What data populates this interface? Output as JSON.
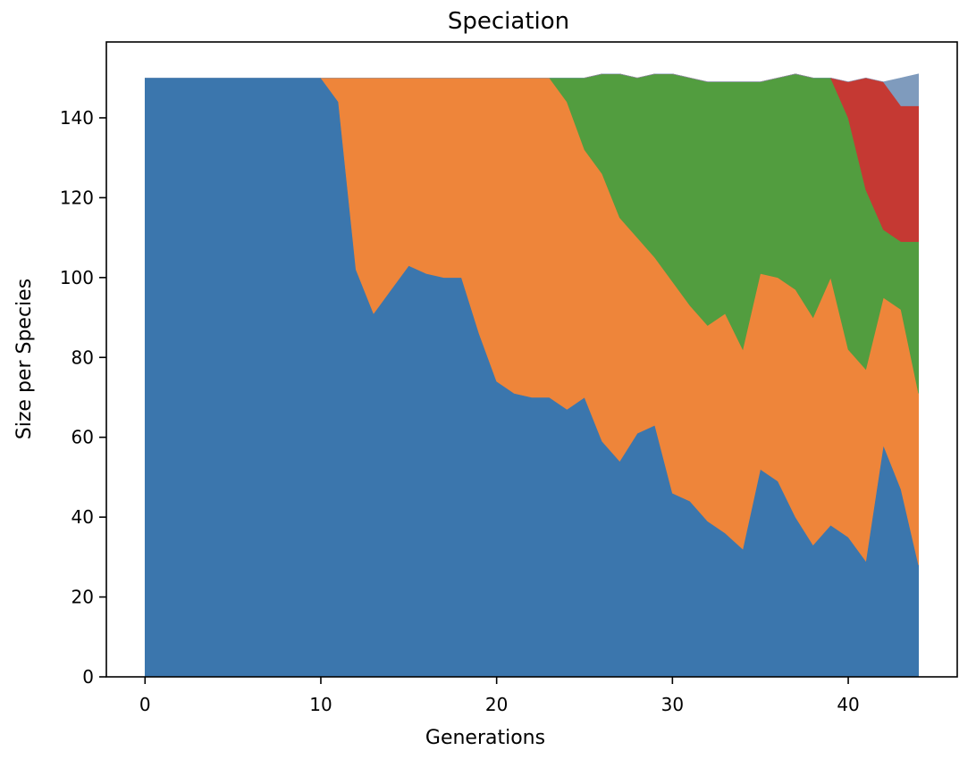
{
  "chart_data": {
    "type": "area",
    "stacked": true,
    "title": "Speciation",
    "xlabel": "Generations",
    "ylabel": "Size per Species",
    "xlim": [
      -2.2,
      46.2
    ],
    "ylim": [
      0,
      159
    ],
    "xticks": [
      0,
      10,
      20,
      30,
      40
    ],
    "yticks": [
      0,
      20,
      40,
      60,
      80,
      100,
      120,
      140
    ],
    "grid": false,
    "legend": false,
    "x": [
      0,
      1,
      2,
      3,
      4,
      5,
      6,
      7,
      8,
      9,
      10,
      11,
      12,
      13,
      14,
      15,
      16,
      17,
      18,
      19,
      20,
      21,
      22,
      23,
      24,
      25,
      26,
      27,
      28,
      29,
      30,
      31,
      32,
      33,
      34,
      35,
      36,
      37,
      38,
      39,
      40,
      41,
      42,
      43,
      44
    ],
    "series": [
      {
        "color": "#3b76ad",
        "values": [
          150,
          150,
          150,
          150,
          150,
          150,
          150,
          150,
          150,
          150,
          150,
          144,
          102,
          91,
          97,
          103,
          101,
          100,
          100,
          86,
          74,
          71,
          70,
          70,
          67,
          70,
          59,
          54,
          61,
          63,
          46,
          44,
          39,
          36,
          32,
          52,
          49,
          40,
          33,
          38,
          35,
          29,
          58,
          47,
          28
        ]
      },
      {
        "color": "#ee853a",
        "values": [
          0,
          0,
          0,
          0,
          0,
          0,
          0,
          0,
          0,
          0,
          0,
          6,
          48,
          59,
          53,
          47,
          49,
          50,
          50,
          64,
          76,
          79,
          80,
          80,
          77,
          62,
          67,
          61,
          49,
          42,
          53,
          49,
          49,
          55,
          50,
          49,
          51,
          57,
          57,
          62,
          47,
          48,
          37,
          45,
          43
        ]
      },
      {
        "color": "#529d3f",
        "values": [
          0,
          0,
          0,
          0,
          0,
          0,
          0,
          0,
          0,
          0,
          0,
          0,
          0,
          0,
          0,
          0,
          0,
          0,
          0,
          0,
          0,
          0,
          0,
          0,
          6,
          18,
          25,
          36,
          40,
          46,
          52,
          57,
          61,
          58,
          67,
          48,
          50,
          54,
          60,
          50,
          58,
          45,
          17,
          17,
          38
        ]
      },
      {
        "color": "#c53933",
        "values": [
          0,
          0,
          0,
          0,
          0,
          0,
          0,
          0,
          0,
          0,
          0,
          0,
          0,
          0,
          0,
          0,
          0,
          0,
          0,
          0,
          0,
          0,
          0,
          0,
          0,
          0,
          0,
          0,
          0,
          0,
          0,
          0,
          0,
          0,
          0,
          0,
          0,
          0,
          0,
          0,
          9,
          28,
          37,
          34,
          34
        ]
      },
      {
        "color": "#7f9bbd",
        "values": [
          0,
          0,
          0,
          0,
          0,
          0,
          0,
          0,
          0,
          0,
          0,
          0,
          0,
          0,
          0,
          0,
          0,
          0,
          0,
          0,
          0,
          0,
          0,
          0,
          0,
          0,
          0,
          0,
          0,
          0,
          0,
          0,
          0,
          0,
          0,
          0,
          0,
          0,
          0,
          0,
          0,
          0,
          0,
          7,
          8
        ]
      }
    ]
  }
}
